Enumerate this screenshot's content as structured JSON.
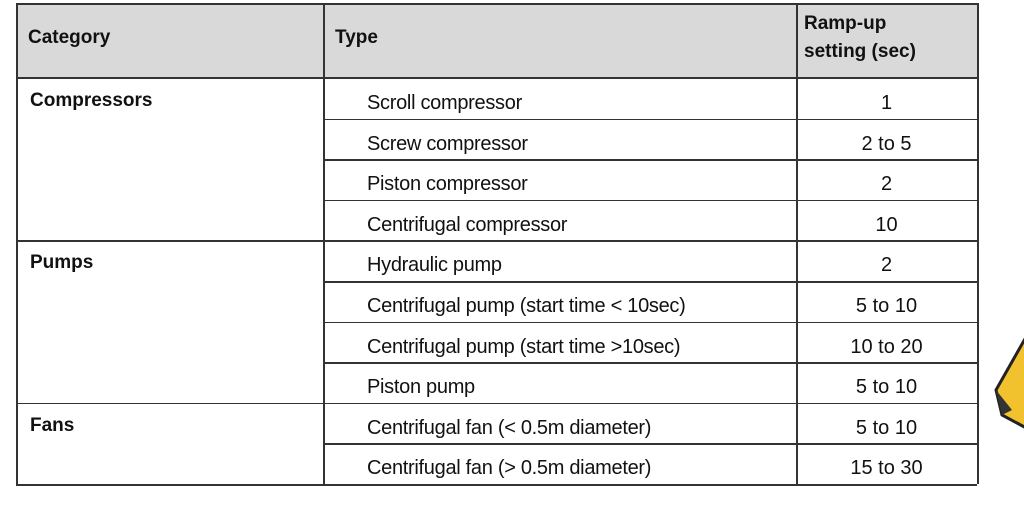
{
  "table": {
    "header": [
      "Category",
      "Type",
      "Ramp-up\nsetting (sec)"
    ],
    "groups": [
      {
        "category": "Compressors",
        "rows": [
          {
            "type": "Scroll compressor",
            "setting": "1"
          },
          {
            "type": "Screw compressor",
            "setting": "2 to 5"
          },
          {
            "type": "Piston compressor",
            "setting": "2"
          },
          {
            "type": "Centrifugal compressor",
            "setting": "10"
          }
        ]
      },
      {
        "category": "Pumps",
        "rows": [
          {
            "type": "Hydraulic pump",
            "setting": "2"
          },
          {
            "type": "Centrifugal pump (start time < 10sec)",
            "setting": "5 to 10"
          },
          {
            "type": "Centrifugal pump (start time >10sec)",
            "setting": "10 to 20"
          },
          {
            "type": "Piston pump",
            "setting": "5 to 10"
          }
        ]
      },
      {
        "category": "Fans",
        "rows": [
          {
            "type": "Centrifugal fan (< 0.5m diameter)",
            "setting": "5 to 10"
          },
          {
            "type": "Centrifugal fan (> 0.5m diameter)",
            "setting": "15 to 30"
          }
        ]
      }
    ]
  }
}
